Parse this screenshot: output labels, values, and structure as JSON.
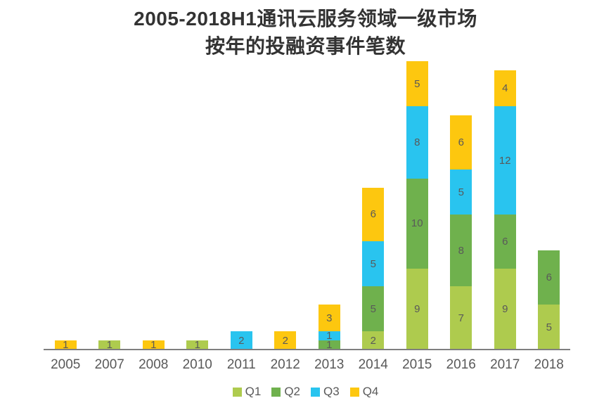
{
  "title": {
    "line1": "2005-2018H1通讯云服务领域一级市场",
    "line2": "按年的投融资事件笔数"
  },
  "colors": {
    "q1": "#aecb4e",
    "q2": "#6fb14d",
    "q3": "#29c4ef",
    "q4": "#fdc70f",
    "title_text": "#333333",
    "label_text": "#595959",
    "axis_line": "#7f7f7f",
    "background": "#ffffff"
  },
  "chart_data": {
    "type": "bar",
    "stacked": true,
    "title": "2005-2018H1通讯云服务领域一级市场 按年的投融资事件笔数",
    "title_lines": [
      "2005-2018H1通讯云服务领域一级市场",
      "按年的投融资事件笔数"
    ],
    "categories": [
      "2005",
      "2007",
      "2008",
      "2010",
      "2011",
      "2012",
      "2013",
      "2014",
      "2015",
      "2016",
      "2017",
      "2018"
    ],
    "series": [
      {
        "name": "Q1",
        "color": "#aecb4e",
        "values": [
          0,
          1,
          0,
          1,
          0,
          0,
          0,
          2,
          9,
          7,
          9,
          5
        ]
      },
      {
        "name": "Q2",
        "color": "#6fb14d",
        "values": [
          0,
          0,
          0,
          0,
          0,
          0,
          1,
          5,
          10,
          8,
          6,
          6
        ]
      },
      {
        "name": "Q3",
        "color": "#29c4ef",
        "values": [
          0,
          0,
          0,
          0,
          2,
          0,
          1,
          5,
          8,
          5,
          12,
          0
        ]
      },
      {
        "name": "Q4",
        "color": "#fdc70f",
        "values": [
          1,
          0,
          1,
          0,
          0,
          2,
          3,
          6,
          5,
          6,
          4,
          0
        ]
      }
    ],
    "totals": [
      1,
      1,
      1,
      1,
      2,
      2,
      5,
      18,
      32,
      26,
      31,
      11
    ],
    "value_labels": true,
    "grid": false,
    "legend_position": "bottom",
    "xlabel": "",
    "ylabel": "",
    "ylim": [
      0,
      32
    ]
  }
}
